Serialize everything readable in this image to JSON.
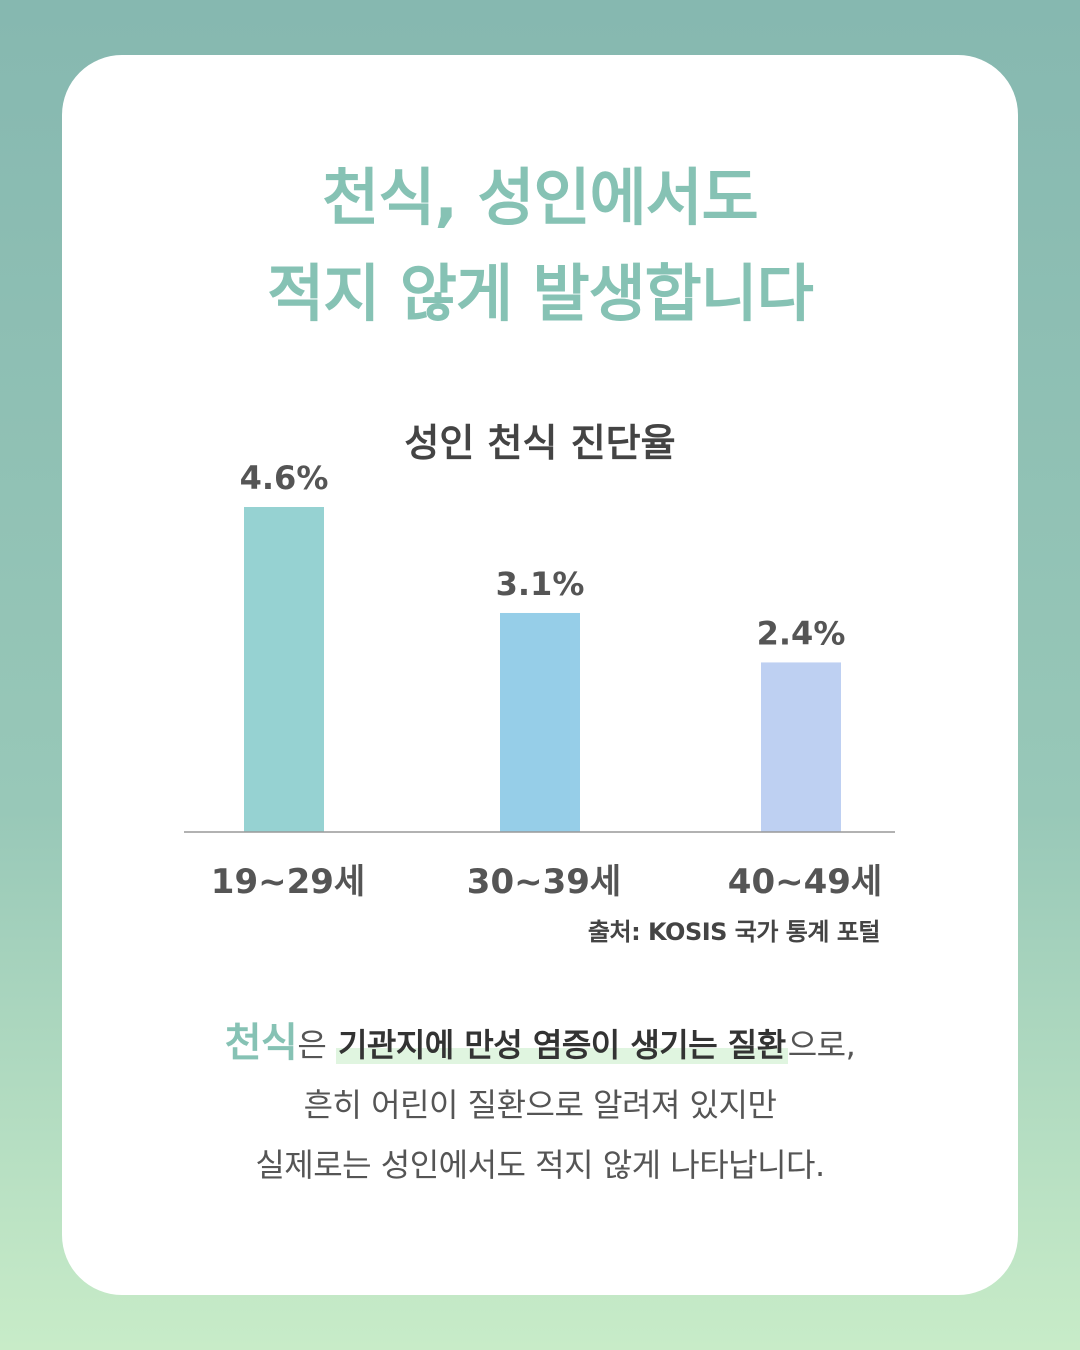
{
  "headline": {
    "line1": "천식, 성인에서도",
    "line2": "적지 않게 발생합니다"
  },
  "chart_data": {
    "type": "bar",
    "title": "성인 천식 진단율",
    "categories": [
      "19~29세",
      "30~39세",
      "40~49세"
    ],
    "values": [
      4.6,
      3.1,
      2.4
    ],
    "value_labels": [
      "4.6%",
      "3.1%",
      "2.4%"
    ],
    "colors": [
      "#96d2d2",
      "#96cee8",
      "#bed0f2"
    ],
    "ylim": [
      0,
      4.6
    ],
    "grid": false,
    "xlabel": "",
    "ylabel": ""
  },
  "source": "출처: KOSIS 국가 통계 포털",
  "description": {
    "keyword": "천식",
    "particle": "은 ",
    "highlight": "기관지에 만성 염증이 생기는 질환",
    "after_highlight": "으로,",
    "line2": "흔히 어린이 질환으로 알려져 있지만",
    "line3": "실제로는 성인에서도 적지 않게 나타납니다."
  },
  "colors": {
    "accent": "#86c2b4",
    "text": "#444444",
    "highlight": "#e0f5e0"
  }
}
